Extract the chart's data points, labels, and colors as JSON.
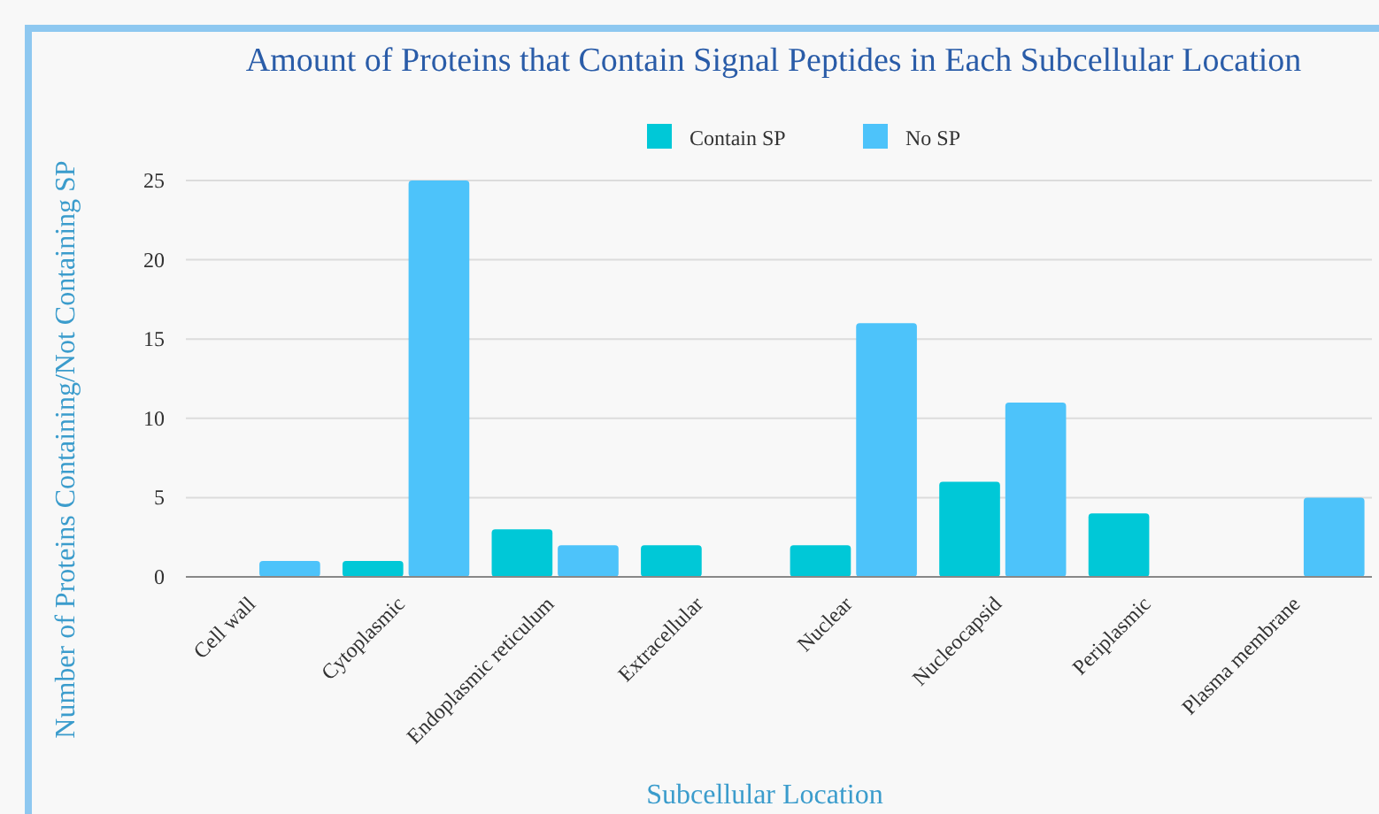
{
  "chart_data": {
    "type": "bar",
    "title": "Amount of Proteins that Contain Signal Peptides in Each Subcellular Location",
    "xlabel": "Subcellular Location",
    "ylabel": "Number of Proteins Containing/Not Containing SP",
    "categories": [
      "Cell wall",
      "Cytoplasmic",
      "Endoplasmic reticulum",
      "Extracellular",
      "Nuclear",
      "Nucleocapsid",
      "Periplasmic",
      "Plasma membrane"
    ],
    "series": [
      {
        "name": "Contain SP",
        "color": "#00c8d7",
        "values": [
          0,
          1,
          3,
          2,
          2,
          6,
          4,
          0
        ]
      },
      {
        "name": "No SP",
        "color": "#4dc3fa",
        "values": [
          1,
          25,
          2,
          0,
          16,
          11,
          0,
          5
        ]
      }
    ],
    "ylim": [
      0,
      25
    ],
    "yticks": [
      0,
      5,
      10,
      15,
      20,
      25
    ],
    "grid": "y",
    "legend": "top"
  }
}
